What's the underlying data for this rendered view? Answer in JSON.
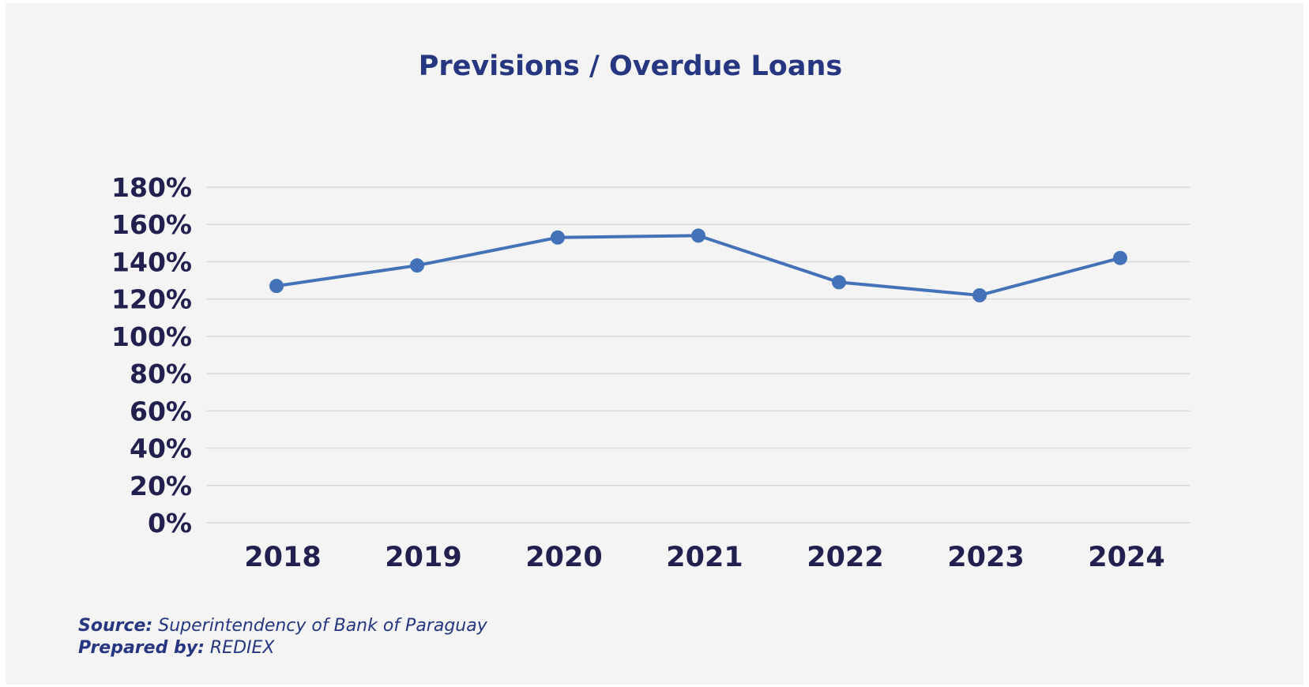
{
  "chart_data": {
    "type": "line",
    "title": "Previsions / Overdue Loans",
    "categories": [
      "2018",
      "2019",
      "2020",
      "2021",
      "2022",
      "2023",
      "2024"
    ],
    "series": [
      {
        "values": [
          127,
          138,
          153,
          154,
          129,
          122,
          142
        ]
      }
    ],
    "ylim": [
      0,
      180
    ],
    "yticks": [
      0,
      20,
      40,
      60,
      80,
      100,
      120,
      140,
      160,
      180
    ],
    "ytick_suffix": "%",
    "grid": true,
    "line_color": "#4472b8",
    "text_color": "#22204f",
    "title_color": "#263680"
  },
  "footer": {
    "source_label": "Source:",
    "source_text": "Superintendency of Bank of Paraguay",
    "prepared_label": "Prepared by:",
    "prepared_text": "REDIEX"
  }
}
